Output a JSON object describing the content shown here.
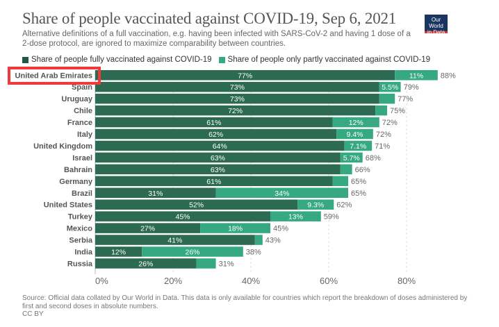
{
  "header": {
    "title": "Share of people vaccinated against COVID-19, Sep 6, 2021",
    "subtitle": "Alternative definitions of a full vaccination, e.g. having been infected with SARS-CoV-2 and having 1 dose of a 2-dose protocol, are ignored to maximize comparability between countries.",
    "logo_line1": "Our World",
    "logo_line2": "in Data"
  },
  "footer": {
    "source": "Source: Official data collated by Our World in Data. This data is only available for countries which report the breakdown of doses administered by first and second doses in absolute numbers.",
    "license": "CC BY"
  },
  "colors": {
    "full": "#2d6a52",
    "partial": "#36a882",
    "grid": "#dddddd",
    "highlight": "#f03a3a"
  },
  "chart_data": {
    "type": "bar",
    "orientation": "horizontal",
    "stacked": true,
    "title": "Share of people vaccinated against COVID-19, Sep 6, 2021",
    "xlabel": "",
    "ylabel": "",
    "xlim": [
      0,
      90
    ],
    "grid": true,
    "x_ticks": [
      "0%",
      "20%",
      "40%",
      "60%",
      "80%"
    ],
    "x_tick_values": [
      0,
      20,
      40,
      60,
      80
    ],
    "legend_position": "top-left",
    "categories": [
      "United Arab Emirates",
      "Spain",
      "Uruguay",
      "Chile",
      "France",
      "Italy",
      "United Kingdom",
      "Israel",
      "Bahrain",
      "Germany",
      "Brazil",
      "United States",
      "Turkey",
      "Mexico",
      "Serbia",
      "India",
      "Russia"
    ],
    "series": [
      {
        "name": "Share of people fully vaccinated against COVID-19",
        "values": [
          77,
          73,
          73,
          72,
          61,
          62,
          64,
          63,
          63,
          61,
          31,
          52,
          45,
          27,
          41,
          12,
          26
        ],
        "labels": [
          "77%",
          "73%",
          "73%",
          "72%",
          "61%",
          "62%",
          "64%",
          "63%",
          "63%",
          "61%",
          "31%",
          "52%",
          "45%",
          "27%",
          "41%",
          "12%",
          "26%"
        ]
      },
      {
        "name": "Share of people only partly vaccinated against COVID-19",
        "values": [
          11,
          5.5,
          4,
          3,
          12,
          9.4,
          7.1,
          5.7,
          3,
          4,
          34,
          9.3,
          13,
          18,
          2,
          26,
          5
        ],
        "labels": [
          "11%",
          "5.5%",
          "",
          "",
          "12%",
          "9.4%",
          "7.1%",
          "5.7%",
          "",
          "",
          "34%",
          "9.3%",
          "13%",
          "18%",
          "",
          "26%",
          ""
        ]
      }
    ],
    "totals": [
      "88%",
      "79%",
      "77%",
      "75%",
      "72%",
      "72%",
      "71%",
      "68%",
      "66%",
      "65%",
      "65%",
      "62%",
      "59%",
      "45%",
      "43%",
      "38%",
      "31%"
    ],
    "highlighted_category": "United Arab Emirates"
  }
}
